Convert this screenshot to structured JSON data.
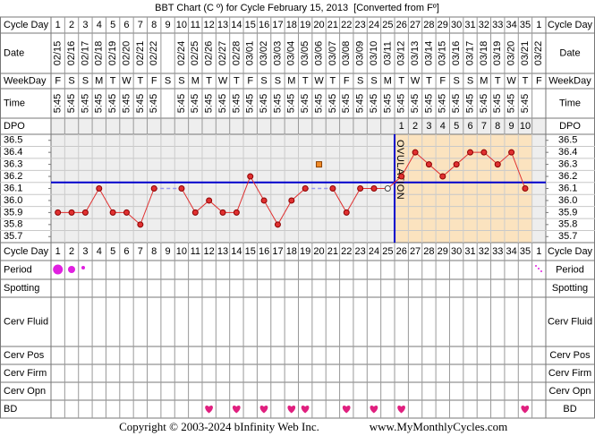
{
  "chart_data": {
    "type": "bbt",
    "title": "BBT Chart (C º) for Cycle February 15, 2013  [Converted from Fº]",
    "row_labels": {
      "cycle_day": "Cycle Day",
      "date": "Date",
      "weekday": "WeekDay",
      "time": "Time",
      "dpo": "DPO",
      "period": "Period",
      "spotting": "Spotting",
      "cerv_fluid": "Cerv Fluid",
      "cerv_pos": "Cerv Pos",
      "cerv_firm": "Cerv Firm",
      "cerv_opn": "Cerv Opn",
      "bd": "BD"
    },
    "categories": [
      1,
      2,
      3,
      4,
      5,
      6,
      7,
      8,
      9,
      10,
      11,
      12,
      13,
      14,
      15,
      16,
      17,
      18,
      19,
      20,
      21,
      22,
      23,
      24,
      25,
      26,
      27,
      28,
      29,
      30,
      31,
      32,
      33,
      34,
      35,
      1
    ],
    "dates": [
      "02/15",
      "02/16",
      "02/17",
      "02/18",
      "02/19",
      "02/20",
      "02/21",
      "02/22",
      null,
      "02/24",
      "02/25",
      "02/26",
      "02/27",
      "02/28",
      "03/01",
      "03/02",
      "03/03",
      "03/04",
      "03/05",
      "03/06",
      "03/07",
      "03/08",
      "03/09",
      "03/10",
      "03/11",
      "03/12",
      "03/13",
      "03/14",
      "03/15",
      "03/16",
      "03/17",
      "03/18",
      "03/19",
      "03/20",
      "03/21",
      "03/22"
    ],
    "weekdays": [
      "F",
      "S",
      "S",
      "M",
      "T",
      "W",
      "T",
      "F",
      "S",
      "S",
      "M",
      "T",
      "W",
      "T",
      "F",
      "S",
      "S",
      "M",
      "T",
      "W",
      "T",
      "F",
      "S",
      "S",
      "M",
      "T",
      "W",
      "T",
      "F",
      "S",
      "S",
      "M",
      "T",
      "W",
      "T",
      "F"
    ],
    "times": [
      "5:45",
      "5:45",
      "5:45",
      "5:45",
      "5:45",
      "5:45",
      "5:45",
      "5:45",
      null,
      "5:45",
      "5:45",
      "5:45",
      "5:45",
      "5:45",
      "5:45",
      "5:45",
      "5:45",
      "5:45",
      "5:45",
      "5:45",
      "5:45",
      "5:45",
      "5:45",
      "5:45",
      "5:45",
      "5:45",
      "5:45",
      "5:45",
      "5:45",
      "5:45",
      "5:45",
      "5:45",
      "5:45",
      "5:45",
      "5:45",
      null
    ],
    "dpo": [
      null,
      null,
      null,
      null,
      null,
      null,
      null,
      null,
      null,
      null,
      null,
      null,
      null,
      null,
      null,
      null,
      null,
      null,
      null,
      null,
      null,
      null,
      null,
      null,
      null,
      1,
      2,
      3,
      4,
      5,
      6,
      7,
      8,
      9,
      10,
      null
    ],
    "values": [
      35.9,
      35.9,
      35.9,
      36.1,
      35.9,
      35.9,
      35.8,
      36.1,
      null,
      36.1,
      35.9,
      36.0,
      35.9,
      35.9,
      36.2,
      36.0,
      35.8,
      36.0,
      36.1,
      null,
      36.1,
      35.9,
      36.1,
      36.1,
      36.1,
      36.2,
      36.4,
      36.3,
      36.2,
      36.3,
      36.4,
      36.4,
      36.3,
      36.4,
      36.1,
      null
    ],
    "discarded": [
      null,
      null,
      null,
      null,
      null,
      null,
      null,
      null,
      null,
      null,
      null,
      null,
      null,
      null,
      null,
      null,
      null,
      null,
      null,
      36.3,
      null,
      null,
      null,
      null,
      null,
      null,
      null,
      null,
      null,
      null,
      null,
      null,
      null,
      null,
      null,
      null
    ],
    "coverline": 36.15,
    "ovulation_label": "OVULATION",
    "ylim": [
      35.65,
      36.55
    ],
    "yticks": [
      36.5,
      36.4,
      36.3,
      36.2,
      36.1,
      {
        "value": 36,
        "label": "36.0"
      },
      35.9,
      35.8,
      35.7
    ],
    "line_color": "#e03030",
    "coverline_color": "#0000cc",
    "copyright": "Copyright © 2003-2024 bInfinity Web Inc.",
    "website": "www.MyMonthlyCycles.com"
  }
}
